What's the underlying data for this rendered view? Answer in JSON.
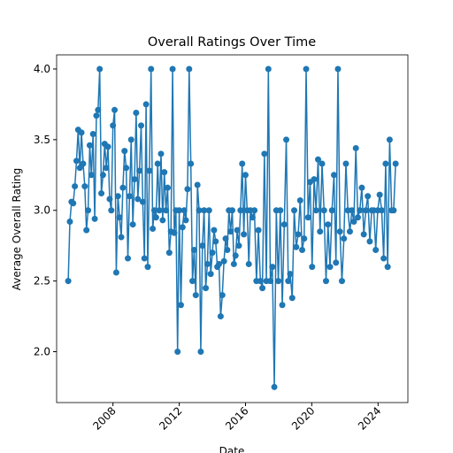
{
  "chart_data": {
    "type": "line",
    "title": "Overall Ratings Over Time",
    "xlabel": "Date",
    "ylabel": "Average Overall Rating",
    "x": [
      2005.3,
      2005.4,
      2005.5,
      2005.6,
      2005.7,
      2005.8,
      2005.9,
      2006.0,
      2006.1,
      2006.2,
      2006.3,
      2006.4,
      2006.5,
      2006.6,
      2006.7,
      2006.8,
      2006.9,
      2007.0,
      2007.1,
      2007.2,
      2007.3,
      2007.4,
      2007.5,
      2007.6,
      2007.7,
      2007.8,
      2007.9,
      2008.0,
      2008.1,
      2008.2,
      2008.3,
      2008.4,
      2008.5,
      2008.6,
      2008.7,
      2008.8,
      2008.9,
      2009.0,
      2009.1,
      2009.2,
      2009.3,
      2009.4,
      2009.5,
      2009.6,
      2009.7,
      2009.8,
      2009.9,
      2010.0,
      2010.1,
      2010.2,
      2010.3,
      2010.4,
      2010.5,
      2010.6,
      2010.7,
      2010.8,
      2010.9,
      2011.0,
      2011.1,
      2011.2,
      2011.3,
      2011.4,
      2011.5,
      2011.6,
      2011.7,
      2011.8,
      2011.9,
      2012.0,
      2012.1,
      2012.2,
      2012.3,
      2012.4,
      2012.5,
      2012.6,
      2012.7,
      2012.8,
      2012.9,
      2013.0,
      2013.1,
      2013.2,
      2013.3,
      2013.4,
      2013.5,
      2013.6,
      2013.7,
      2013.8,
      2013.9,
      2014.0,
      2014.1,
      2014.2,
      2014.3,
      2014.4,
      2014.5,
      2014.6,
      2014.7,
      2014.8,
      2014.9,
      2015.0,
      2015.1,
      2015.2,
      2015.3,
      2015.4,
      2015.5,
      2015.6,
      2015.7,
      2015.8,
      2015.9,
      2016.0,
      2016.1,
      2016.2,
      2016.3,
      2016.42,
      2016.54,
      2016.66,
      2016.78,
      2016.9,
      2017.02,
      2017.14,
      2017.26,
      2017.38,
      2017.5,
      2017.62,
      2017.74,
      2017.86,
      2017.98,
      2018.1,
      2018.22,
      2018.34,
      2018.46,
      2018.58,
      2018.7,
      2018.82,
      2018.94,
      2019.06,
      2019.18,
      2019.3,
      2019.42,
      2019.54,
      2019.66,
      2019.78,
      2019.9,
      2020.02,
      2020.14,
      2020.26,
      2020.38,
      2020.5,
      2020.62,
      2020.74,
      2020.86,
      2020.98,
      2021.1,
      2021.22,
      2021.34,
      2021.46,
      2021.58,
      2021.7,
      2021.82,
      2021.94,
      2022.06,
      2022.18,
      2022.3,
      2022.42,
      2022.54,
      2022.66,
      2022.78,
      2022.9,
      2023.02,
      2023.14,
      2023.26,
      2023.38,
      2023.5,
      2023.62,
      2023.74,
      2023.86,
      2023.98,
      2024.1,
      2024.22,
      2024.34,
      2024.46,
      2024.58,
      2024.7,
      2024.82,
      2024.94,
      2025.06
    ],
    "series": [
      {
        "name": "Overall Rating",
        "color": "#1f77b4",
        "values": [
          2.5,
          2.92,
          3.06,
          3.05,
          3.17,
          3.35,
          3.57,
          3.3,
          3.55,
          3.33,
          3.17,
          2.86,
          3.0,
          3.46,
          3.25,
          3.54,
          2.94,
          3.67,
          3.71,
          4.0,
          3.12,
          3.25,
          3.47,
          3.3,
          3.45,
          3.08,
          3.0,
          3.6,
          3.71,
          2.56,
          3.1,
          2.95,
          2.81,
          3.16,
          3.42,
          3.3,
          2.66,
          3.1,
          3.5,
          2.9,
          3.22,
          3.69,
          3.08,
          3.28,
          3.6,
          3.06,
          2.66,
          3.75,
          2.6,
          3.28,
          4.0,
          2.87,
          3.0,
          2.95,
          3.33,
          3.0,
          3.4,
          2.93,
          3.27,
          3.0,
          3.16,
          2.7,
          2.85,
          4.0,
          2.84,
          3.0,
          2.0,
          3.0,
          2.33,
          2.88,
          3.0,
          2.93,
          3.15,
          4.0,
          3.33,
          2.5,
          2.72,
          2.4,
          3.18,
          3.0,
          2.0,
          2.75,
          3.0,
          2.45,
          2.62,
          3.0,
          2.55,
          2.7,
          2.86,
          2.78,
          2.6,
          2.62,
          2.25,
          2.4,
          2.64,
          2.8,
          2.72,
          3.0,
          2.85,
          3.0,
          2.62,
          2.68,
          2.86,
          2.75,
          3.0,
          3.33,
          2.83,
          3.25,
          3.0,
          2.62,
          3.0,
          2.95,
          3.0,
          2.5,
          2.86,
          2.5,
          2.45,
          3.4,
          2.5,
          4.0,
          2.5,
          2.6,
          1.75,
          3.0,
          2.5,
          3.0,
          2.33,
          2.9,
          3.5,
          2.5,
          2.55,
          2.38,
          3.0,
          2.74,
          2.83,
          3.07,
          2.72,
          2.8,
          4.0,
          2.95,
          3.2,
          2.6,
          3.22,
          3.0,
          3.36,
          2.85,
          3.33,
          3.0,
          2.5,
          2.9,
          2.6,
          3.0,
          3.25,
          2.63,
          4.0,
          2.85,
          2.5,
          2.8,
          3.33,
          3.0,
          2.85,
          3.0,
          2.92,
          3.44,
          2.95,
          3.0,
          3.16,
          2.83,
          3.0,
          3.1,
          2.78,
          3.0,
          3.0,
          2.72,
          3.0,
          3.11,
          3.0,
          2.66,
          3.33,
          2.6,
          3.5,
          3.0,
          3.0,
          3.33
        ]
      }
    ],
    "xlim": [
      2004.6,
      2025.8
    ],
    "xticks": [
      2008,
      2012,
      2016,
      2020,
      2024
    ],
    "ylim": [
      1.64,
      4.1
    ],
    "yticks": [
      {
        "value": 2,
        "label": "2.0"
      },
      {
        "value": 2.5,
        "label": "2.5"
      },
      {
        "value": 3,
        "label": "3.0"
      },
      {
        "value": 3.5,
        "label": "3.5"
      },
      {
        "value": 4,
        "label": "4.0"
      }
    ]
  }
}
